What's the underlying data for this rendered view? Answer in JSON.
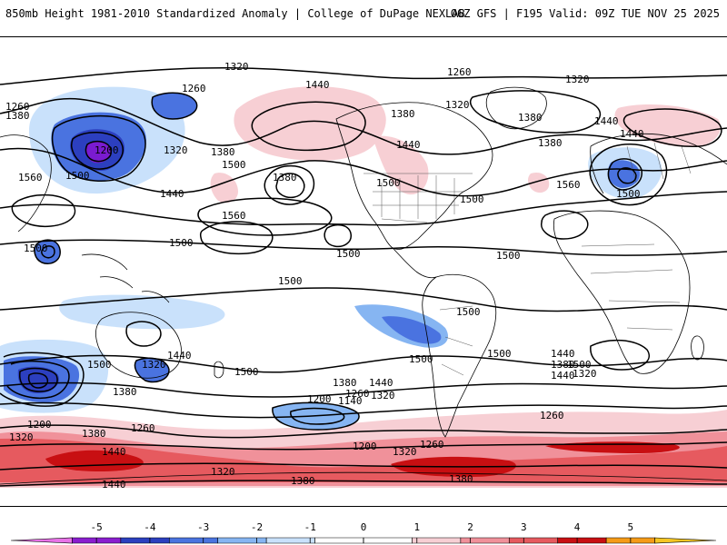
{
  "header": {
    "title": "850mb Height 1981-2010 Standardized Anomaly | College of DuPage NEXLAB",
    "run_info": "06Z GFS | F195 Valid: 09Z TUE NOV 25 2025"
  },
  "map": {
    "contour_labels": [
      "1320",
      "1260",
      "1440",
      "1260",
      "1320",
      "1380",
      "1380",
      "1320",
      "1440",
      "1260",
      "1380",
      "1200",
      "1560",
      "1500",
      "1320",
      "1380",
      "1500",
      "1380",
      "1440",
      "1500",
      "1440",
      "1380",
      "1500",
      "1500",
      "1500",
      "1560",
      "1440",
      "1560",
      "1500",
      "1500",
      "1500",
      "1500",
      "1500",
      "1500",
      "1500",
      "1500",
      "1500",
      "1440",
      "1320",
      "1500",
      "1380",
      "1440",
      "1440",
      "1380",
      "1320",
      "1380",
      "1440",
      "1320",
      "1260",
      "1200",
      "1140",
      "1200",
      "1260",
      "1320",
      "1260",
      "1260",
      "1200",
      "1320",
      "1380",
      "1440",
      "1320",
      "1380",
      "1380",
      "1440"
    ],
    "colors": {
      "contour": "#000000",
      "coast": "#000000",
      "border": "#555555",
      "neg1": "#c9e1fb",
      "neg2": "#86b5f2",
      "neg3": "#4a73e0",
      "neg4": "#2c3fbf",
      "neg5": "#7a1bd0",
      "pos1": "#f7cfd4",
      "pos2": "#f0919a",
      "pos3": "#e65a5f",
      "pos4": "#c80f12",
      "pos5": "#f5a623"
    }
  },
  "colorbar": {
    "ticks": [
      "-5",
      "-4",
      "-3",
      "-2",
      "-1",
      "0",
      "1",
      "2",
      "3",
      "4",
      "5"
    ],
    "segment_colors": [
      "#e873e8",
      "#8a1ecf",
      "#2b3fbf",
      "#4a74e0",
      "#86b5f2",
      "#c9e1fb",
      "#ffffff",
      "#ffffff",
      "#f7cfd4",
      "#f0919a",
      "#e65a5f",
      "#c80f12",
      "#f59b18",
      "#f5c623"
    ]
  }
}
